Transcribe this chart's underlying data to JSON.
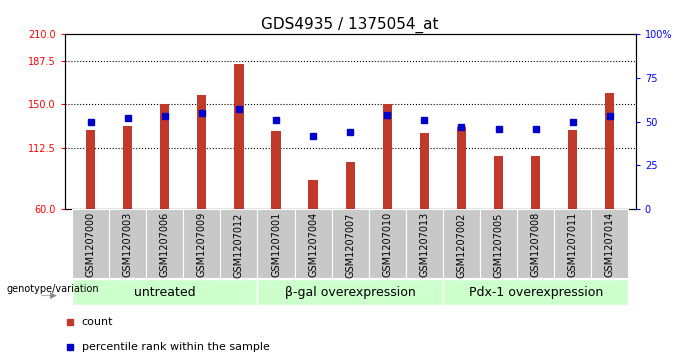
{
  "title": "GDS4935 / 1375054_at",
  "samples": [
    "GSM1207000",
    "GSM1207003",
    "GSM1207006",
    "GSM1207009",
    "GSM1207012",
    "GSM1207001",
    "GSM1207004",
    "GSM1207007",
    "GSM1207010",
    "GSM1207013",
    "GSM1207002",
    "GSM1207005",
    "GSM1207008",
    "GSM1207011",
    "GSM1207014"
  ],
  "counts": [
    128,
    131,
    150,
    158,
    185,
    127,
    85,
    100,
    150,
    125,
    130,
    105,
    105,
    128,
    160
  ],
  "percentiles": [
    50,
    52,
    53,
    55,
    57,
    51,
    42,
    44,
    54,
    51,
    47,
    46,
    46,
    50,
    53
  ],
  "groups": [
    {
      "label": "untreated",
      "start": 0,
      "end": 5
    },
    {
      "label": "β-gal overexpression",
      "start": 5,
      "end": 10
    },
    {
      "label": "Pdx-1 overexpression",
      "start": 10,
      "end": 15
    }
  ],
  "bar_color": "#C0392B",
  "dot_color": "#0000CC",
  "group_bg_color": "#CCFFCC",
  "sample_bg_color": "#C8C8C8",
  "ylim_left": [
    60,
    210
  ],
  "ylim_right": [
    0,
    100
  ],
  "yticks_left": [
    60,
    112.5,
    150,
    187.5,
    210
  ],
  "yticks_right": [
    0,
    25,
    50,
    75,
    100
  ],
  "hlines": [
    112.5,
    150,
    187.5
  ],
  "legend_items": [
    {
      "label": "count",
      "color": "#C0392B"
    },
    {
      "label": "percentile rank within the sample",
      "color": "#0000CC"
    }
  ],
  "genotype_label": "genotype/variation",
  "title_fontsize": 11,
  "tick_fontsize": 7,
  "group_fontsize": 9,
  "legend_fontsize": 8
}
